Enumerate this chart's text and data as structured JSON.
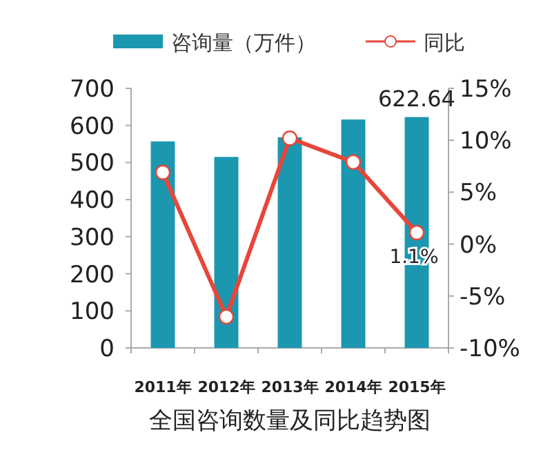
{
  "chart_data": {
    "type": "bar",
    "title": "全国咨询数量及同比趋势图",
    "categories": [
      "2011年",
      "2012年",
      "2013年",
      "2014年",
      "2015年"
    ],
    "series": [
      {
        "name": "咨询量（万件）",
        "color": "#1b97b0",
        "values": [
          557,
          515,
          568,
          616,
          622.64
        ],
        "value_labels": [
          null,
          null,
          null,
          null,
          "622.64"
        ]
      },
      {
        "name": "同比",
        "type": "line",
        "axis": "y2",
        "color": "#e8463a",
        "marker": "circle",
        "values": [
          6.9,
          -7.0,
          10.2,
          7.9,
          1.1
        ],
        "value_labels": [
          null,
          null,
          null,
          null,
          "1.1%"
        ]
      }
    ],
    "ylim": [
      0,
      700
    ],
    "yticks": [
      0,
      100,
      200,
      300,
      400,
      500,
      600,
      700
    ],
    "y2lim": [
      -10,
      15
    ],
    "y2ticks": [
      {
        "value": -10,
        "label": "-10%"
      },
      {
        "value": -5,
        "label": "-5%"
      },
      {
        "value": 0,
        "label": "0%"
      },
      {
        "value": 5,
        "label": "5%"
      },
      {
        "value": 10,
        "label": "10%"
      },
      {
        "value": 15,
        "label": "15%"
      }
    ],
    "legend": "top",
    "grid": false
  }
}
